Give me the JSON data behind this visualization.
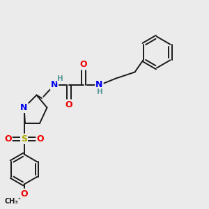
{
  "bg_color": "#ebebeb",
  "bond_color": "#1a1a1a",
  "bond_width": 1.4,
  "atom_colors": {
    "N": "#0000ee",
    "O": "#ee0000",
    "S": "#aaaa00",
    "H": "#5a9a9a",
    "C": "#1a1a1a"
  },
  "font_size_atom": 9,
  "font_size_small": 7.5,
  "font_size_methoxy": 7
}
